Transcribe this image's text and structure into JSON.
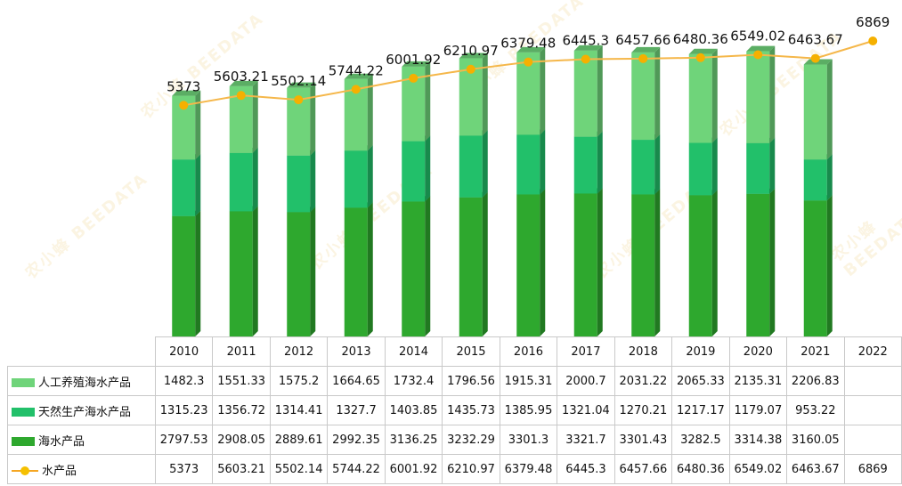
{
  "chart_data": {
    "type": "bar",
    "categories": [
      "2010",
      "2011",
      "2012",
      "2013",
      "2014",
      "2015",
      "2016",
      "2017",
      "2018",
      "2019",
      "2020",
      "2021",
      "2022"
    ],
    "series": [
      {
        "name": "人工养殖海水产品",
        "kind": "bar",
        "color": "#6fd47a",
        "values": [
          1482.3,
          1551.33,
          1575.2,
          1664.65,
          1732.4,
          1796.56,
          1915.31,
          2000.7,
          2031.22,
          2065.33,
          2135.31,
          2206.83,
          null
        ],
        "display": [
          "1482.3",
          "1551.33",
          "1575.2",
          "1664.65",
          "1732.4",
          "1796.56",
          "1915.31",
          "2000.7",
          "2031.22",
          "2065.33",
          "2135.31",
          "2206.83",
          ""
        ]
      },
      {
        "name": "天然生产海水产品",
        "kind": "bar",
        "color": "#22c06a",
        "values": [
          1315.23,
          1356.72,
          1314.41,
          1327.7,
          1403.85,
          1435.73,
          1385.95,
          1321.04,
          1270.21,
          1217.17,
          1179.07,
          953.22,
          null
        ],
        "display": [
          "1315.23",
          "1356.72",
          "1314.41",
          "1327.7",
          "1403.85",
          "1435.73",
          "1385.95",
          "1321.04",
          "1270.21",
          "1217.17",
          "1179.07",
          "953.22",
          ""
        ]
      },
      {
        "name": "海水产品",
        "kind": "bar",
        "color": "#2ea82e",
        "values": [
          2797.53,
          2908.05,
          2889.61,
          2992.35,
          3136.25,
          3232.29,
          3301.3,
          3321.7,
          3301.43,
          3282.5,
          3314.38,
          3160.05,
          null
        ],
        "display": [
          "2797.53",
          "2908.05",
          "2889.61",
          "2992.35",
          "3136.25",
          "3232.29",
          "3301.3",
          "3321.7",
          "3301.43",
          "3282.5",
          "3314.38",
          "3160.05",
          ""
        ]
      },
      {
        "name": "水产品",
        "kind": "line",
        "color": "#f5b000",
        "values": [
          5373,
          5603.21,
          5502.14,
          5744.22,
          6001.92,
          6210.97,
          6379.48,
          6445.3,
          6457.66,
          6480.36,
          6549.02,
          6463.67,
          6869
        ],
        "display": [
          "5373",
          "5603.21",
          "5502.14",
          "5744.22",
          "6001.92",
          "6210.97",
          "6379.48",
          "6445.3",
          "6457.66",
          "6480.36",
          "6549.02",
          "6463.67",
          "6869"
        ]
      }
    ],
    "legend": "table-left",
    "grid": false
  },
  "watermark": "农小蜂 BEEDATA"
}
